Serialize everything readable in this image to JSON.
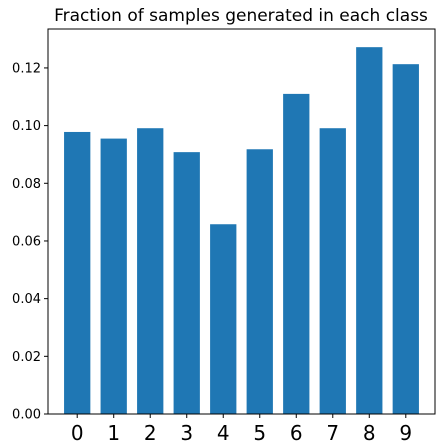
{
  "chart_data": {
    "type": "bar",
    "title": "Fraction of samples generated in each class",
    "xlabel": "",
    "ylabel": "",
    "categories": [
      "0",
      "1",
      "2",
      "3",
      "4",
      "5",
      "6",
      "7",
      "8",
      "9"
    ],
    "values": [
      0.0978,
      0.0955,
      0.0991,
      0.0908,
      0.0658,
      0.0918,
      0.111,
      0.0991,
      0.1272,
      0.1213
    ],
    "ylim": [
      0,
      0.1335
    ],
    "yticks": [
      0.0,
      0.02,
      0.04,
      0.06,
      0.08,
      0.1,
      0.12
    ],
    "ytick_labels": [
      "0.00",
      "0.02",
      "0.04",
      "0.06",
      "0.08",
      "0.10",
      "0.12"
    ],
    "bar_color": "#1f77b4",
    "grid": false,
    "legend": "none"
  }
}
